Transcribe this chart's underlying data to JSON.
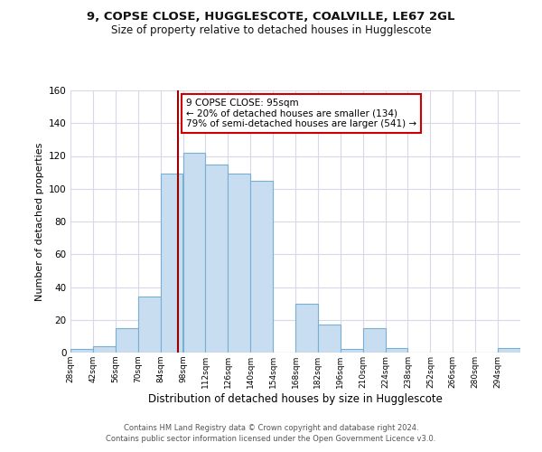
{
  "title1": "9, COPSE CLOSE, HUGGLESCOTE, COALVILLE, LE67 2GL",
  "title2": "Size of property relative to detached houses in Hugglescote",
  "xlabel": "Distribution of detached houses by size in Hugglescote",
  "ylabel": "Number of detached properties",
  "bin_edges": [
    28,
    42,
    56,
    70,
    84,
    98,
    112,
    126,
    140,
    154,
    168,
    182,
    196,
    210,
    224,
    238,
    252,
    266,
    280,
    294,
    308
  ],
  "counts": [
    2,
    4,
    15,
    34,
    109,
    122,
    115,
    109,
    105,
    0,
    30,
    17,
    2,
    15,
    3,
    0,
    0,
    0,
    0,
    3
  ],
  "bar_color": "#c9ddf0",
  "bar_edge_color": "#7aafd4",
  "property_sqm": 95,
  "vline_color": "#990000",
  "annotation_line1": "9 COPSE CLOSE: 95sqm",
  "annotation_line2": "← 20% of detached houses are smaller (134)",
  "annotation_line3": "79% of semi-detached houses are larger (541) →",
  "annotation_box_color": "#ffffff",
  "annotation_box_edge_color": "#cc0000",
  "ylim": [
    0,
    160
  ],
  "yticks": [
    0,
    20,
    40,
    60,
    80,
    100,
    120,
    140,
    160
  ],
  "background_color": "#ffffff",
  "plot_bg_color": "#ffffff",
  "grid_color": "#d8d8e8",
  "footer1": "Contains HM Land Registry data © Crown copyright and database right 2024.",
  "footer2": "Contains public sector information licensed under the Open Government Licence v3.0."
}
